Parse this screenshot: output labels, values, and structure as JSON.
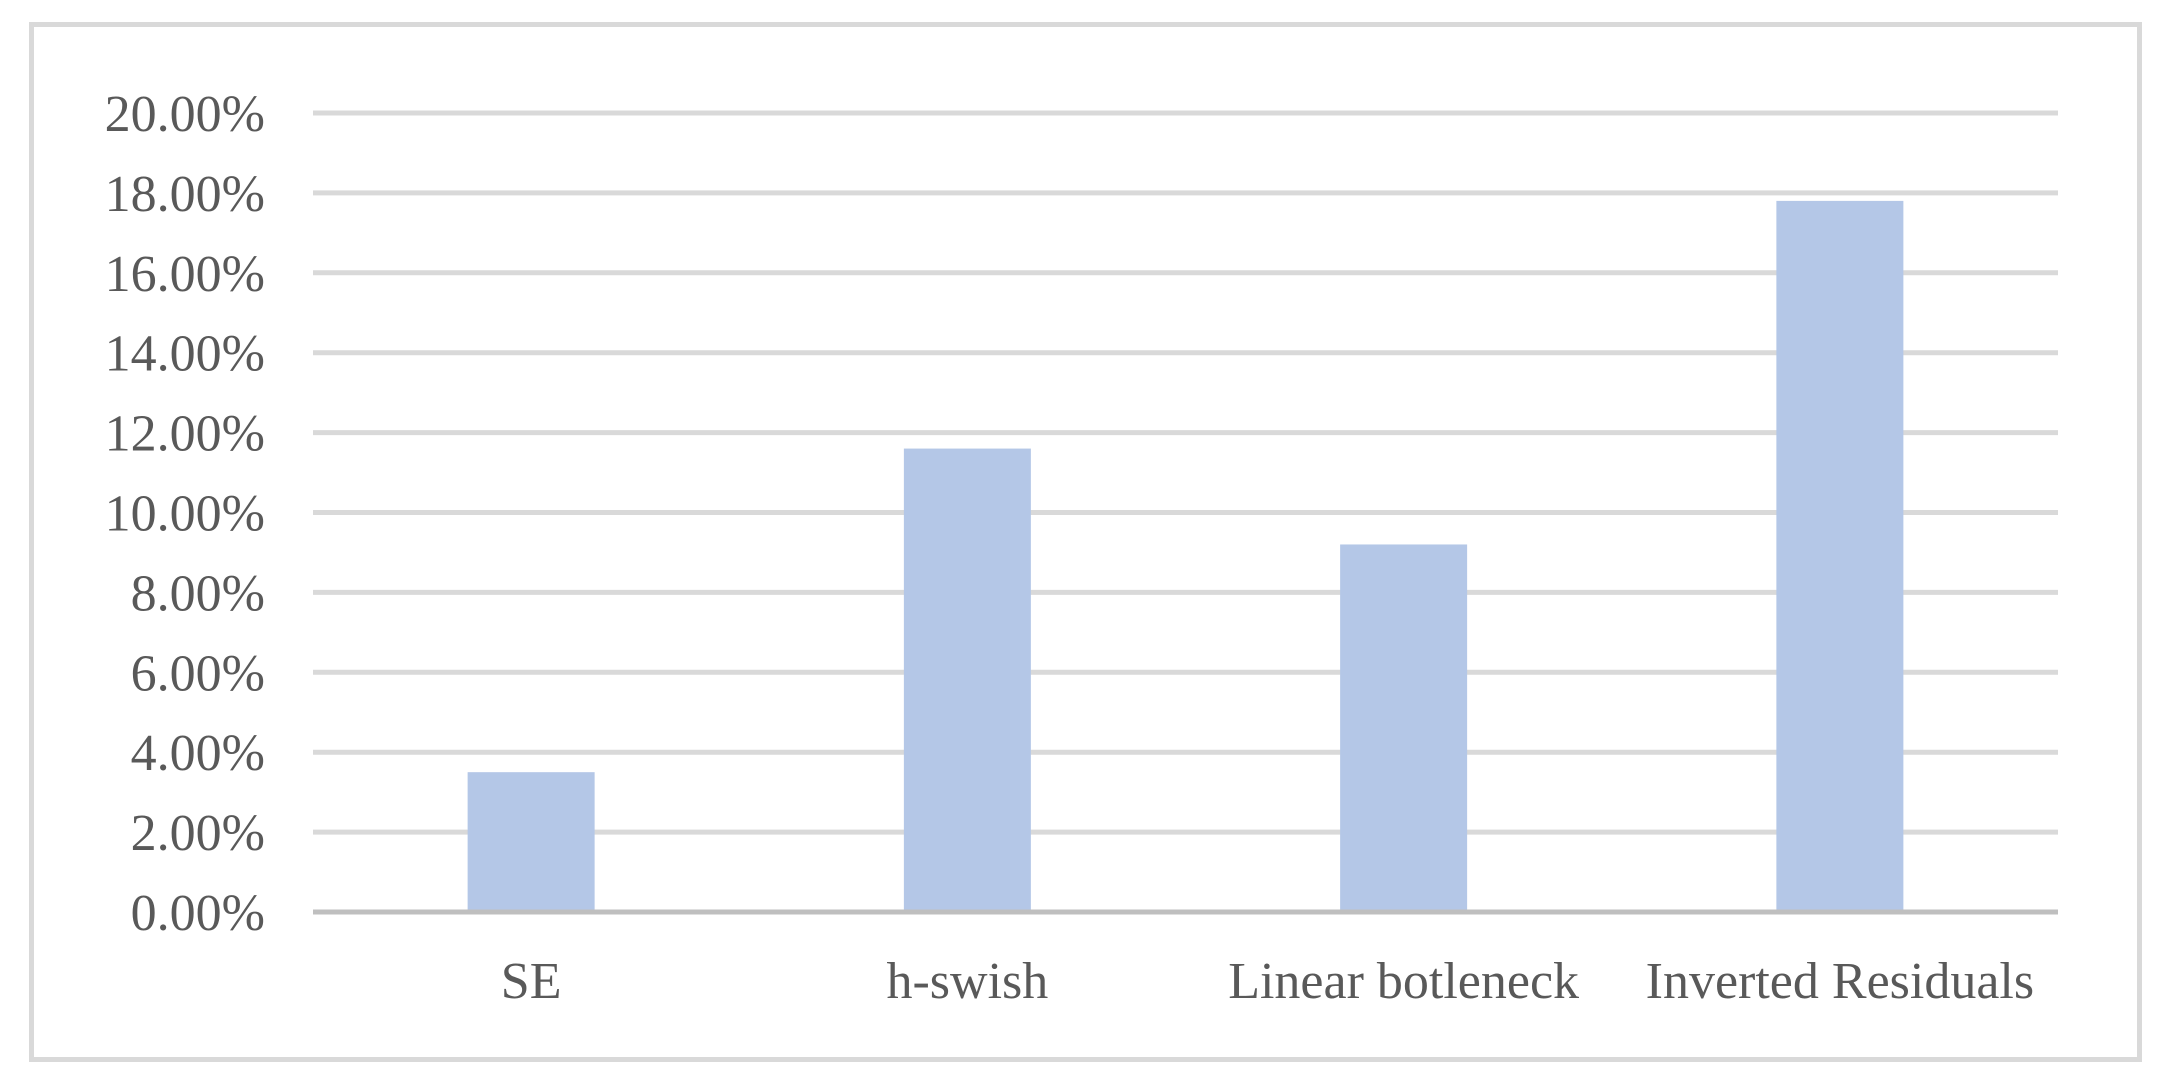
{
  "chart_data": {
    "type": "bar",
    "title": "",
    "xlabel": "",
    "ylabel": "",
    "categories": [
      "SE",
      "h-swish",
      "Linear botleneck",
      "Inverted Residuals"
    ],
    "values": [
      3.5,
      11.6,
      9.2,
      17.8
    ],
    "ylim": [
      0,
      20
    ],
    "yticks": [
      0,
      2,
      4,
      6,
      8,
      10,
      12,
      14,
      16,
      18,
      20
    ],
    "ytick_labels": [
      "0.00%",
      "2.00%",
      "4.00%",
      "6.00%",
      "8.00%",
      "10.00%",
      "12.00%",
      "14.00%",
      "16.00%",
      "18.00%",
      "20.00%"
    ],
    "grid": true,
    "legend": "none",
    "colors": {
      "bar": "#b4c7e7",
      "grid": "#d9d9d9",
      "axis": "#bfbfbf",
      "text": "#595959",
      "frame": "#d9d9d9"
    }
  }
}
